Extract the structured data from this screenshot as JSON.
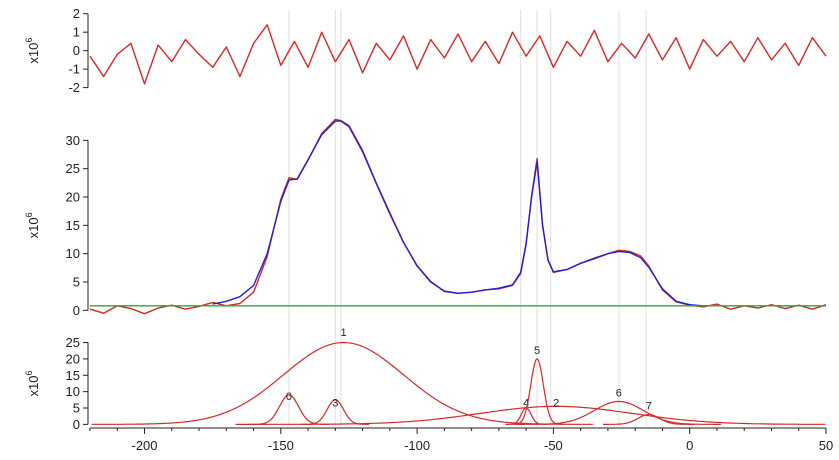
{
  "chart_data": {
    "type": "line",
    "x_axis": {
      "range": [
        -220,
        50
      ],
      "ticks": [
        -200,
        -150,
        -100,
        -50,
        0,
        50
      ],
      "tick_labels": [
        "-200",
        "-150",
        "-100",
        "-50",
        "0",
        "50"
      ]
    },
    "guide_lines_x": [
      -147,
      -130,
      -128,
      -62,
      -56,
      -51,
      -26,
      -16
    ],
    "panels": [
      {
        "name": "residuals",
        "y_unit_label": "x10",
        "y_unit_exponent": "6",
        "ylim": [
          -2.4,
          2.2
        ],
        "yticks": [
          -2,
          -1,
          0,
          1,
          2
        ],
        "ytick_labels": [
          "-2",
          "-1",
          "0",
          "1",
          "2"
        ],
        "series": [
          {
            "color": "#d42a2a",
            "x": [
              -220,
              -215,
              -210,
              -205,
              -200,
              -195,
              -190,
              -185,
              -180,
              -175,
              -170,
              -165,
              -160,
              -155,
              -150,
              -145,
              -140,
              -135,
              -130,
              -125,
              -120,
              -115,
              -110,
              -105,
              -100,
              -95,
              -90,
              -85,
              -80,
              -75,
              -70,
              -65,
              -60,
              -55,
              -50,
              -45,
              -40,
              -35,
              -30,
              -25,
              -20,
              -15,
              -10,
              -5,
              0,
              5,
              10,
              15,
              20,
              25,
              30,
              35,
              40,
              45,
              50
            ],
            "y": [
              -0.3,
              -1.4,
              -0.2,
              0.4,
              -1.8,
              0.3,
              -0.6,
              0.6,
              -0.2,
              -0.9,
              0.2,
              -1.4,
              0.4,
              1.4,
              -0.8,
              0.5,
              -0.9,
              1.0,
              -0.6,
              0.6,
              -1.2,
              0.4,
              -0.5,
              0.8,
              -1.0,
              0.6,
              -0.4,
              0.9,
              -0.6,
              0.5,
              -0.7,
              1.0,
              -0.3,
              0.8,
              -0.9,
              0.5,
              -0.3,
              1.1,
              -0.6,
              0.4,
              -0.4,
              0.9,
              -0.5,
              0.7,
              -1.0,
              0.6,
              -0.3,
              0.5,
              -0.6,
              0.7,
              -0.5,
              0.4,
              -0.8,
              0.7,
              -0.3
            ]
          }
        ]
      },
      {
        "name": "spectrum",
        "y_unit_label": "x10",
        "y_unit_exponent": "6",
        "ylim": [
          -1,
          35
        ],
        "yticks": [
          0,
          5,
          10,
          15,
          20,
          25,
          30
        ],
        "ytick_labels": [
          "0",
          "5",
          "10",
          "15",
          "20",
          "25",
          "30"
        ],
        "series": [
          {
            "color": "#d42a2a",
            "x": [
              -220,
              -215,
              -210,
              -205,
              -200,
              -195,
              -190,
              -185,
              -180,
              -175,
              -170,
              -165,
              -160,
              -155,
              -150,
              -147,
              -144,
              -140,
              -135,
              -130,
              -128,
              -125,
              -120,
              -115,
              -110,
              -105,
              -100,
              -95,
              -90,
              -85,
              -80,
              -75,
              -70,
              -65,
              -62,
              -60,
              -58,
              -56,
              -54,
              -52,
              -50,
              -45,
              -40,
              -35,
              -30,
              -26,
              -22,
              -18,
              -15,
              -10,
              -5,
              0,
              5,
              10,
              15,
              20,
              25,
              30,
              35,
              40,
              45,
              50
            ],
            "y": [
              0.2,
              -0.5,
              0.8,
              0.3,
              -0.6,
              0.4,
              0.9,
              0.2,
              0.7,
              1.4,
              0.8,
              1.2,
              3.2,
              9.5,
              19.6,
              23.4,
              23.1,
              26.5,
              31.2,
              33.7,
              33.5,
              32.6,
              28.2,
              22.5,
              17.2,
              12.0,
              7.9,
              5.1,
              3.3,
              3.0,
              3.2,
              3.6,
              3.8,
              4.4,
              6.5,
              11.6,
              20.2,
              26.8,
              15.2,
              8.8,
              6.7,
              7.2,
              8.3,
              9.1,
              10.0,
              10.6,
              10.4,
              9.6,
              7.8,
              3.6,
              1.5,
              0.9,
              0.6,
              1.1,
              0.2,
              0.8,
              0.4,
              1.0,
              0.3,
              0.9,
              0.2,
              1.0
            ]
          },
          {
            "color": "#2222cc",
            "x": [
              -175,
              -170,
              -165,
              -160,
              -155,
              -150,
              -147,
              -144,
              -140,
              -135,
              -130,
              -128,
              -125,
              -120,
              -115,
              -110,
              -105,
              -100,
              -95,
              -90,
              -85,
              -80,
              -75,
              -70,
              -65,
              -62,
              -60,
              -58,
              -56,
              -54,
              -52,
              -50,
              -45,
              -40,
              -35,
              -30,
              -26,
              -22,
              -18,
              -15,
              -10,
              -5,
              0,
              5,
              10
            ],
            "y": [
              1.1,
              1.6,
              2.4,
              4.4,
              10.0,
              19.2,
              23.0,
              23.2,
              26.6,
              31.0,
              33.4,
              33.4,
              32.4,
              28.0,
              22.4,
              17.0,
              12.0,
              7.8,
              5.0,
              3.4,
              3.0,
              3.2,
              3.6,
              3.9,
              4.5,
              6.7,
              11.8,
              20.0,
              26.2,
              15.0,
              8.9,
              6.8,
              7.2,
              8.3,
              9.2,
              10.0,
              10.4,
              10.2,
              9.3,
              7.6,
              3.8,
              1.6,
              1.0,
              0.8,
              0.8
            ]
          },
          {
            "color": "#2ea82e",
            "x": [
              -220,
              50
            ],
            "y": [
              0.8,
              0.8
            ]
          }
        ]
      },
      {
        "name": "components",
        "y_unit_label": "x10",
        "y_unit_exponent": "6",
        "ylim": [
          -0.5,
          27
        ],
        "yticks": [
          0,
          5,
          10,
          15,
          20,
          25
        ],
        "ytick_labels": [
          "0",
          "5",
          "10",
          "15",
          "20",
          "25"
        ],
        "components": [
          {
            "label": "0",
            "center": -147,
            "amplitude": 9.0,
            "sigma": 3.5,
            "label_y": 7.5
          },
          {
            "label": "1",
            "center": -127,
            "amplitude": 25.0,
            "sigma": 22.0,
            "label_y": 27.0
          },
          {
            "label": "3",
            "center": -130,
            "amplitude": 7.5,
            "sigma": 3.0,
            "label_y": 5.5
          },
          {
            "label": "4",
            "center": -60,
            "amplitude": 5.0,
            "sigma": 1.8,
            "label_y": 5.5
          },
          {
            "label": "5",
            "center": -56,
            "amplitude": 20.0,
            "sigma": 2.3,
            "label_y": 21.5
          },
          {
            "label": "2",
            "center": -49,
            "amplitude": 5.5,
            "sigma": 28.0,
            "label_y": 5.5
          },
          {
            "label": "6",
            "center": -26,
            "amplitude": 7.0,
            "sigma": 9.0,
            "label_y": 8.5
          },
          {
            "label": "7",
            "center": -15,
            "amplitude": 3.0,
            "sigma": 4.0,
            "label_y": 4.5
          }
        ]
      }
    ]
  }
}
